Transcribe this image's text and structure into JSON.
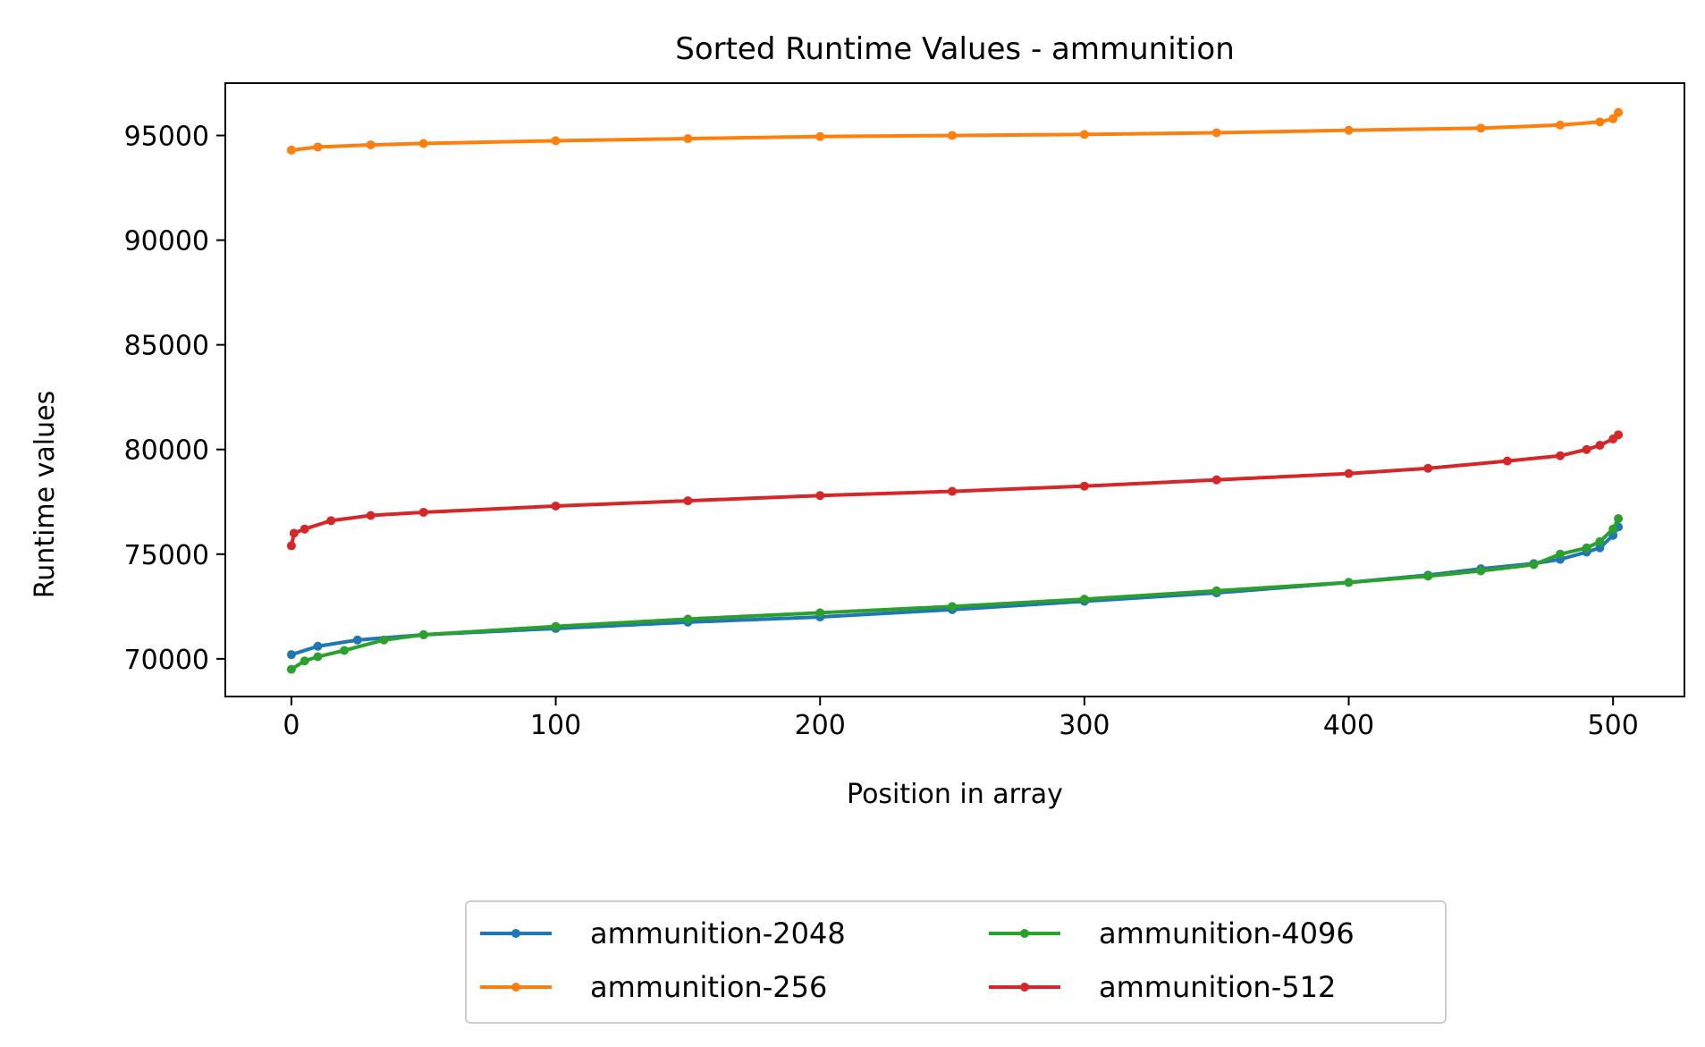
{
  "chart_data": {
    "type": "line",
    "title": "Sorted Runtime Values - ammunition",
    "xlabel": "Position in array",
    "ylabel": "Runtime values",
    "xlim": [
      -25,
      527
    ],
    "ylim": [
      68200,
      97500
    ],
    "xticks": [
      0,
      100,
      200,
      300,
      400,
      500
    ],
    "yticks": [
      70000,
      75000,
      80000,
      85000,
      90000,
      95000
    ],
    "x_range": [
      0,
      502
    ],
    "grid": false,
    "legend": {
      "placement": "bottom-center, below axes",
      "columns": 2
    },
    "series": [
      {
        "name": "ammunition-2048",
        "color": "#1f77b4",
        "keypoints": [
          [
            0,
            70200
          ],
          [
            10,
            70600
          ],
          [
            25,
            70900
          ],
          [
            50,
            71150
          ],
          [
            100,
            71450
          ],
          [
            150,
            71750
          ],
          [
            200,
            72000
          ],
          [
            250,
            72350
          ],
          [
            300,
            72750
          ],
          [
            350,
            73150
          ],
          [
            400,
            73650
          ],
          [
            430,
            74000
          ],
          [
            450,
            74300
          ],
          [
            470,
            74550
          ],
          [
            480,
            74750
          ],
          [
            490,
            75100
          ],
          [
            495,
            75300
          ],
          [
            500,
            75900
          ],
          [
            502,
            76300
          ]
        ]
      },
      {
        "name": "ammunition-256",
        "color": "#ff7f0e",
        "keypoints": [
          [
            0,
            94300
          ],
          [
            10,
            94450
          ],
          [
            30,
            94550
          ],
          [
            50,
            94620
          ],
          [
            100,
            94750
          ],
          [
            150,
            94850
          ],
          [
            200,
            94950
          ],
          [
            250,
            95000
          ],
          [
            300,
            95050
          ],
          [
            350,
            95130
          ],
          [
            400,
            95250
          ],
          [
            450,
            95350
          ],
          [
            480,
            95500
          ],
          [
            495,
            95650
          ],
          [
            500,
            95800
          ],
          [
            502,
            96100
          ]
        ]
      },
      {
        "name": "ammunition-4096",
        "color": "#2ca02c",
        "keypoints": [
          [
            0,
            69500
          ],
          [
            5,
            69900
          ],
          [
            10,
            70100
          ],
          [
            20,
            70400
          ],
          [
            35,
            70900
          ],
          [
            50,
            71150
          ],
          [
            100,
            71550
          ],
          [
            150,
            71900
          ],
          [
            200,
            72200
          ],
          [
            250,
            72500
          ],
          [
            300,
            72850
          ],
          [
            350,
            73250
          ],
          [
            400,
            73650
          ],
          [
            430,
            73950
          ],
          [
            450,
            74200
          ],
          [
            470,
            74500
          ],
          [
            480,
            75000
          ],
          [
            490,
            75300
          ],
          [
            495,
            75600
          ],
          [
            500,
            76200
          ],
          [
            502,
            76700
          ]
        ]
      },
      {
        "name": "ammunition-512",
        "color": "#d62728",
        "keypoints": [
          [
            0,
            75400
          ],
          [
            1,
            76000
          ],
          [
            5,
            76200
          ],
          [
            15,
            76600
          ],
          [
            30,
            76850
          ],
          [
            50,
            77000
          ],
          [
            100,
            77300
          ],
          [
            150,
            77550
          ],
          [
            200,
            77800
          ],
          [
            250,
            78000
          ],
          [
            300,
            78250
          ],
          [
            350,
            78550
          ],
          [
            400,
            78850
          ],
          [
            430,
            79100
          ],
          [
            460,
            79450
          ],
          [
            480,
            79700
          ],
          [
            490,
            80000
          ],
          [
            495,
            80200
          ],
          [
            500,
            80500
          ],
          [
            502,
            80700
          ]
        ]
      }
    ]
  }
}
